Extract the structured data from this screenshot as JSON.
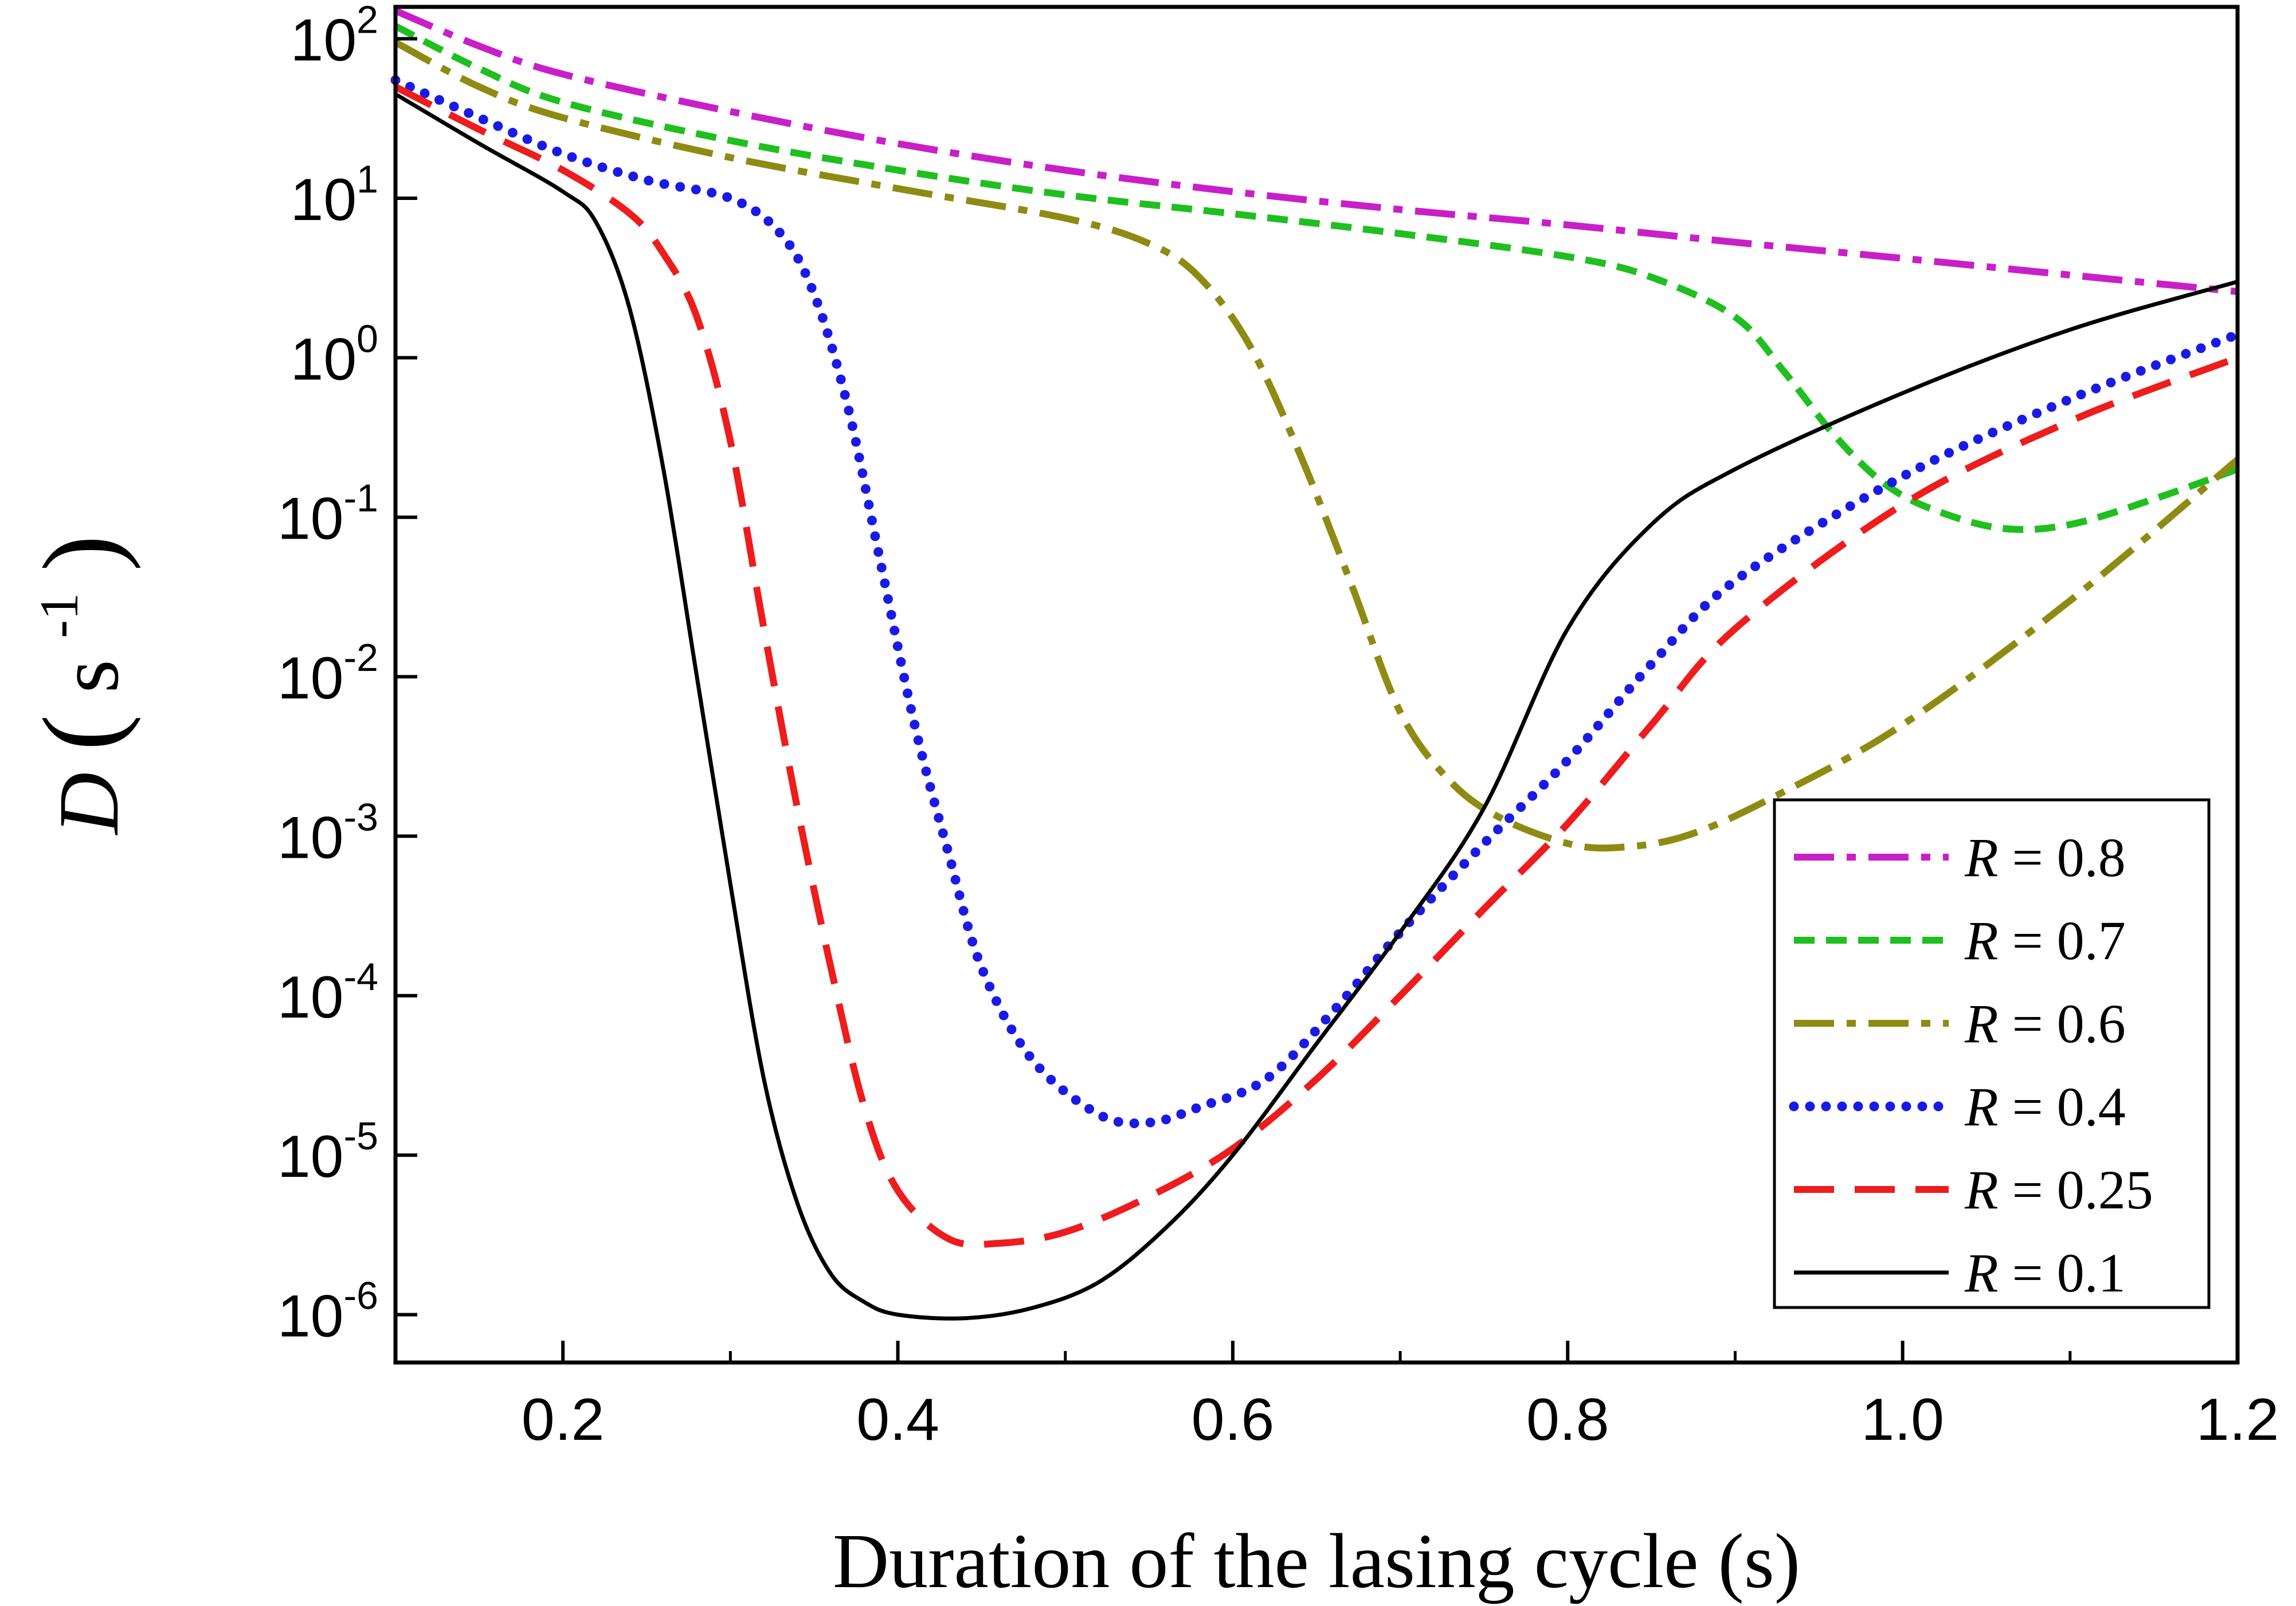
{
  "chart_data": {
    "type": "line",
    "xlabel": "Duration of the lasing cycle (s)",
    "ylabel": {
      "symbol": "D",
      "unit_base": "s",
      "unit_exp": "-1"
    },
    "xlim": [
      0.1,
      1.2
    ],
    "ylim_log10": [
      -6.3,
      2.2
    ],
    "y_scale": "log",
    "grid": false,
    "legend_position": "bottom-right",
    "x_ticks": [
      "0.2",
      "0.4",
      "0.6",
      "0.8",
      "1.0",
      "1.2"
    ],
    "x_tick_values": [
      0.2,
      0.4,
      0.6,
      0.8,
      1.0,
      1.2
    ],
    "y_ticks": [
      {
        "base": "10",
        "exp": "2",
        "value": 100
      },
      {
        "base": "10",
        "exp": "1",
        "value": 10
      },
      {
        "base": "10",
        "exp": "0",
        "value": 1
      },
      {
        "base": "10",
        "exp": "-1",
        "value": 0.1
      },
      {
        "base": "10",
        "exp": "-2",
        "value": 0.01
      },
      {
        "base": "10",
        "exp": "-3",
        "value": 0.001
      },
      {
        "base": "10",
        "exp": "-4",
        "value": 0.0001
      },
      {
        "base": "10",
        "exp": "-5",
        "value": 1e-05
      },
      {
        "base": "10",
        "exp": "-6",
        "value": 1e-06
      }
    ],
    "series": [
      {
        "name": "R = 0.8",
        "r_letter": "R",
        "r_rest": " = 0.8",
        "color": "#c81fc8",
        "dash": "70,22,16,22",
        "x": [
          0.1,
          0.15,
          0.2,
          0.3,
          0.4,
          0.5,
          0.6,
          0.7,
          0.8,
          0.9,
          1.0,
          1.1,
          1.2
        ],
        "y": [
          150,
          90,
          60,
          35,
          22,
          15,
          11,
          8.5,
          6.8,
          5.3,
          4.2,
          3.3,
          2.6
        ]
      },
      {
        "name": "R = 0.7",
        "r_letter": "R",
        "r_rest": " = 0.7",
        "color": "#1fbf1f",
        "dash": "36,20",
        "x": [
          0.1,
          0.15,
          0.2,
          0.3,
          0.4,
          0.5,
          0.6,
          0.7,
          0.8,
          0.85,
          0.9,
          0.93,
          0.96,
          0.99,
          1.02,
          1.06,
          1.1,
          1.15,
          1.2
        ],
        "y": [
          120,
          65,
          40,
          23,
          15,
          10.5,
          8,
          6,
          4.3,
          3.2,
          1.8,
          0.8,
          0.32,
          0.16,
          0.11,
          0.085,
          0.09,
          0.13,
          0.2
        ]
      },
      {
        "name": "R = 0.6",
        "r_letter": "R",
        "r_rest": " = 0.6",
        "color": "#8e8b12",
        "dash": "70,22,16,22",
        "x": [
          0.1,
          0.15,
          0.2,
          0.3,
          0.4,
          0.5,
          0.55,
          0.58,
          0.61,
          0.64,
          0.67,
          0.7,
          0.73,
          0.76,
          0.8,
          0.83,
          0.87,
          0.92,
          1.0,
          1.1,
          1.2
        ],
        "y": [
          95,
          50,
          32,
          18,
          11.5,
          7.5,
          5.2,
          3.2,
          1.2,
          0.25,
          0.04,
          0.006,
          0.0022,
          0.0013,
          0.0009,
          0.00085,
          0.001,
          0.0017,
          0.005,
          0.03,
          0.23
        ]
      },
      {
        "name": "R = 0.4",
        "r_letter": "R",
        "r_rest": " = 0.4",
        "color": "#1a1ae6",
        "dash": "0,28",
        "x": [
          0.1,
          0.15,
          0.2,
          0.25,
          0.3,
          0.33,
          0.35,
          0.37,
          0.39,
          0.41,
          0.43,
          0.45,
          0.48,
          0.52,
          0.55,
          0.58,
          0.62,
          0.66,
          0.7,
          0.75,
          0.8,
          0.85,
          0.9,
          1.0,
          1.1,
          1.2
        ],
        "y": [
          55,
          32,
          19,
          13,
          10,
          6,
          2.5,
          0.5,
          0.05,
          0.005,
          0.0008,
          0.00015,
          4e-05,
          1.8e-05,
          1.6e-05,
          2e-05,
          3e-05,
          8e-05,
          0.00025,
          0.0009,
          0.003,
          0.012,
          0.04,
          0.18,
          0.55,
          1.4
        ]
      },
      {
        "name": "R = 0.25",
        "r_letter": "R",
        "r_rest": " = 0.25",
        "color": "#ee1c1c",
        "dash": "70,36",
        "x": [
          0.1,
          0.15,
          0.2,
          0.24,
          0.26,
          0.28,
          0.3,
          0.32,
          0.34,
          0.36,
          0.38,
          0.4,
          0.43,
          0.46,
          0.5,
          0.55,
          0.6,
          0.65,
          0.7,
          0.75,
          0.8,
          0.85,
          0.9,
          1.0,
          1.1,
          1.2
        ],
        "y": [
          50,
          27,
          15,
          8,
          4.5,
          1.8,
          0.3,
          0.02,
          0.0015,
          0.00015,
          2e-05,
          6e-06,
          3e-06,
          2.8e-06,
          3.3e-06,
          5.5e-06,
          1.1e-05,
          3e-05,
          0.0001,
          0.00035,
          0.0012,
          0.005,
          0.02,
          0.12,
          0.4,
          1.0
        ]
      },
      {
        "name": "R = 0.1",
        "r_letter": "R",
        "r_rest": " = 0.1",
        "color": "#000000",
        "dash": "",
        "x": [
          0.1,
          0.15,
          0.2,
          0.22,
          0.24,
          0.26,
          0.28,
          0.3,
          0.32,
          0.34,
          0.36,
          0.38,
          0.4,
          0.44,
          0.48,
          0.52,
          0.56,
          0.6,
          0.65,
          0.7,
          0.75,
          0.8,
          0.85,
          0.9,
          1.0,
          1.1,
          1.2
        ],
        "y": [
          45,
          22,
          11,
          7,
          2,
          0.2,
          0.01,
          0.0005,
          3e-05,
          5e-06,
          1.8e-06,
          1.2e-06,
          1e-06,
          9.5e-07,
          1.1e-06,
          1.6e-06,
          3.5e-06,
          1e-05,
          5e-05,
          0.00025,
          0.0015,
          0.02,
          0.09,
          0.2,
          0.6,
          1.5,
          3.0
        ]
      }
    ]
  }
}
